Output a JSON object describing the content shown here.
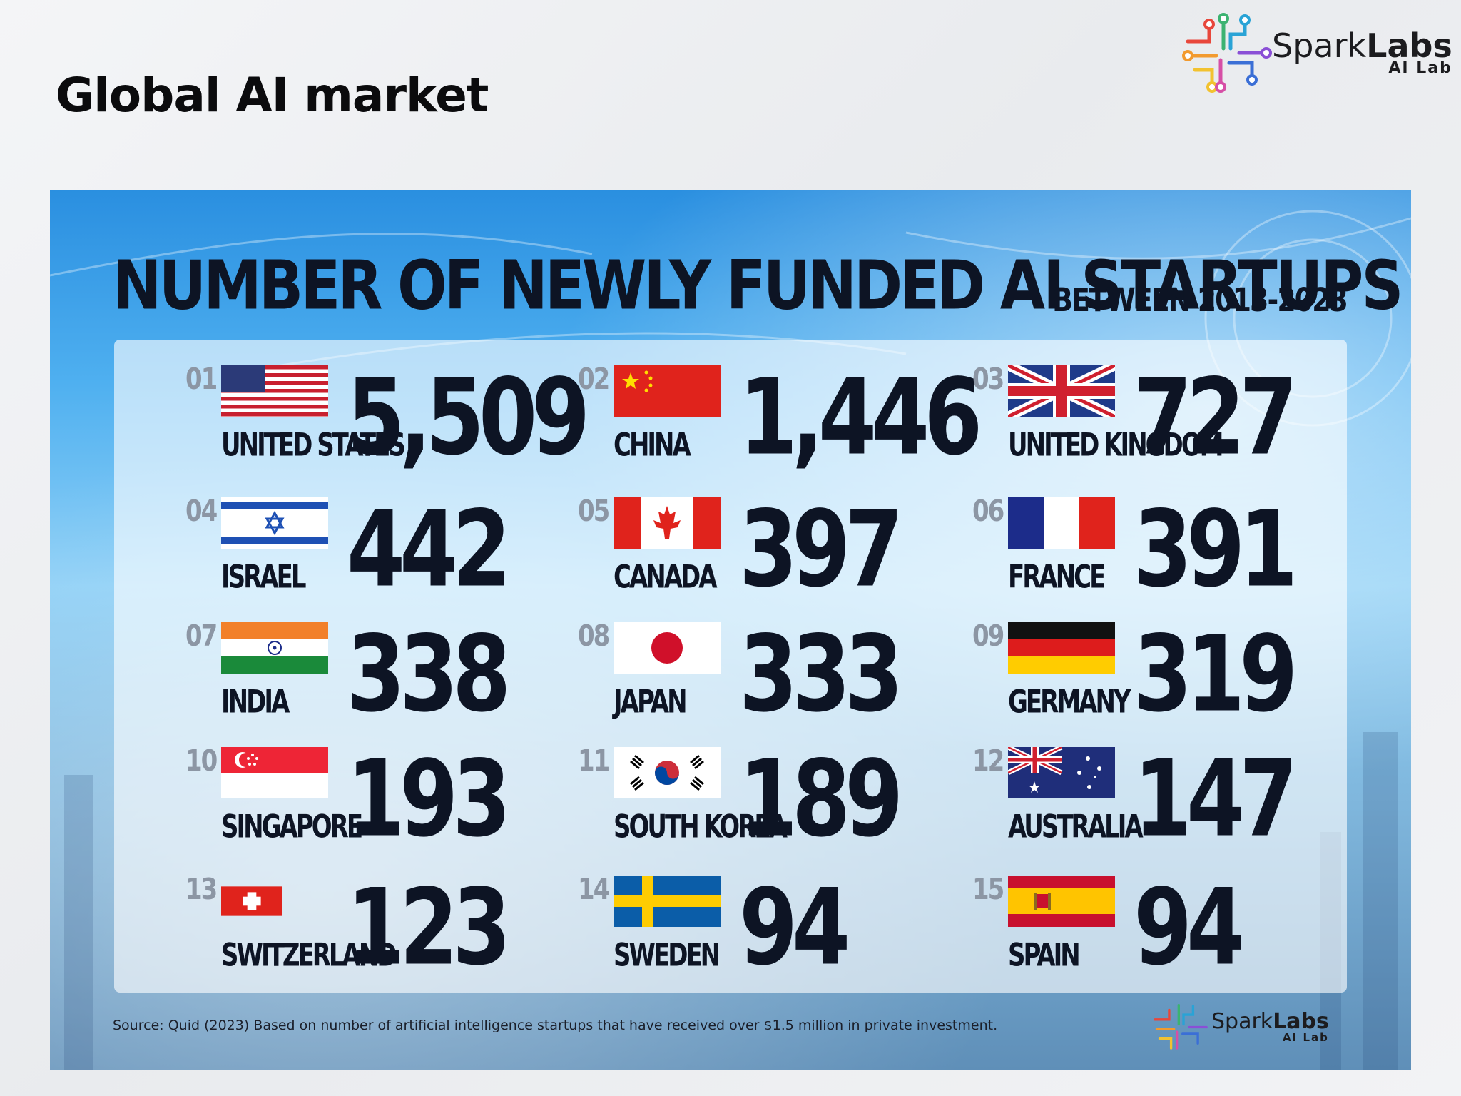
{
  "page": {
    "title": "Global AI market"
  },
  "brand": {
    "name_light": "Spark",
    "name_bold": "Labs",
    "sub": "AI Lab"
  },
  "infographic": {
    "title_part1": "NUMBER OF NEWLY FUNDED",
    "title_part2": "AI STARTUPS",
    "subtitle": "BETWEEN 2013-2023",
    "source": "Source: Quid (2023) Based on number of artificial intelligence startups that have received over $1.5 million in private investment."
  },
  "chart_data": {
    "type": "table",
    "title": "NUMBER OF NEWLY FUNDED AI STARTUPS",
    "subtitle": "BETWEEN 2013-2023",
    "columns": [
      "rank",
      "country",
      "value"
    ],
    "rows": [
      {
        "rank": "01",
        "country": "UNITED STATES",
        "value": 5509,
        "value_label": "5,509",
        "flag": "us-flag"
      },
      {
        "rank": "02",
        "country": "CHINA",
        "value": 1446,
        "value_label": "1,446",
        "flag": "china-flag"
      },
      {
        "rank": "03",
        "country": "UNITED KINGDOM",
        "value": 727,
        "value_label": "727",
        "flag": "uk-flag"
      },
      {
        "rank": "04",
        "country": "ISRAEL",
        "value": 442,
        "value_label": "442",
        "flag": "israel-flag"
      },
      {
        "rank": "05",
        "country": "CANADA",
        "value": 397,
        "value_label": "397",
        "flag": "canada-flag"
      },
      {
        "rank": "06",
        "country": "FRANCE",
        "value": 391,
        "value_label": "391",
        "flag": "france-flag"
      },
      {
        "rank": "07",
        "country": "INDIA",
        "value": 338,
        "value_label": "338",
        "flag": "india-flag"
      },
      {
        "rank": "08",
        "country": "JAPAN",
        "value": 333,
        "value_label": "333",
        "flag": "japan-flag"
      },
      {
        "rank": "09",
        "country": "GERMANY",
        "value": 319,
        "value_label": "319",
        "flag": "germany-flag"
      },
      {
        "rank": "10",
        "country": "SINGAPORE",
        "value": 193,
        "value_label": "193",
        "flag": "singapore-flag"
      },
      {
        "rank": "11",
        "country": "SOUTH KOREA",
        "value": 189,
        "value_label": "189",
        "flag": "south-korea-flag"
      },
      {
        "rank": "12",
        "country": "AUSTRALIA",
        "value": 147,
        "value_label": "147",
        "flag": "australia-flag"
      },
      {
        "rank": "13",
        "country": "SWITZERLAND",
        "value": 123,
        "value_label": "123",
        "flag": "switzerland-flag"
      },
      {
        "rank": "14",
        "country": "SWEDEN",
        "value": 94,
        "value_label": "94",
        "flag": "sweden-flag"
      },
      {
        "rank": "15",
        "country": "SPAIN",
        "value": 94,
        "value_label": "94",
        "flag": "spain-flag"
      }
    ]
  }
}
